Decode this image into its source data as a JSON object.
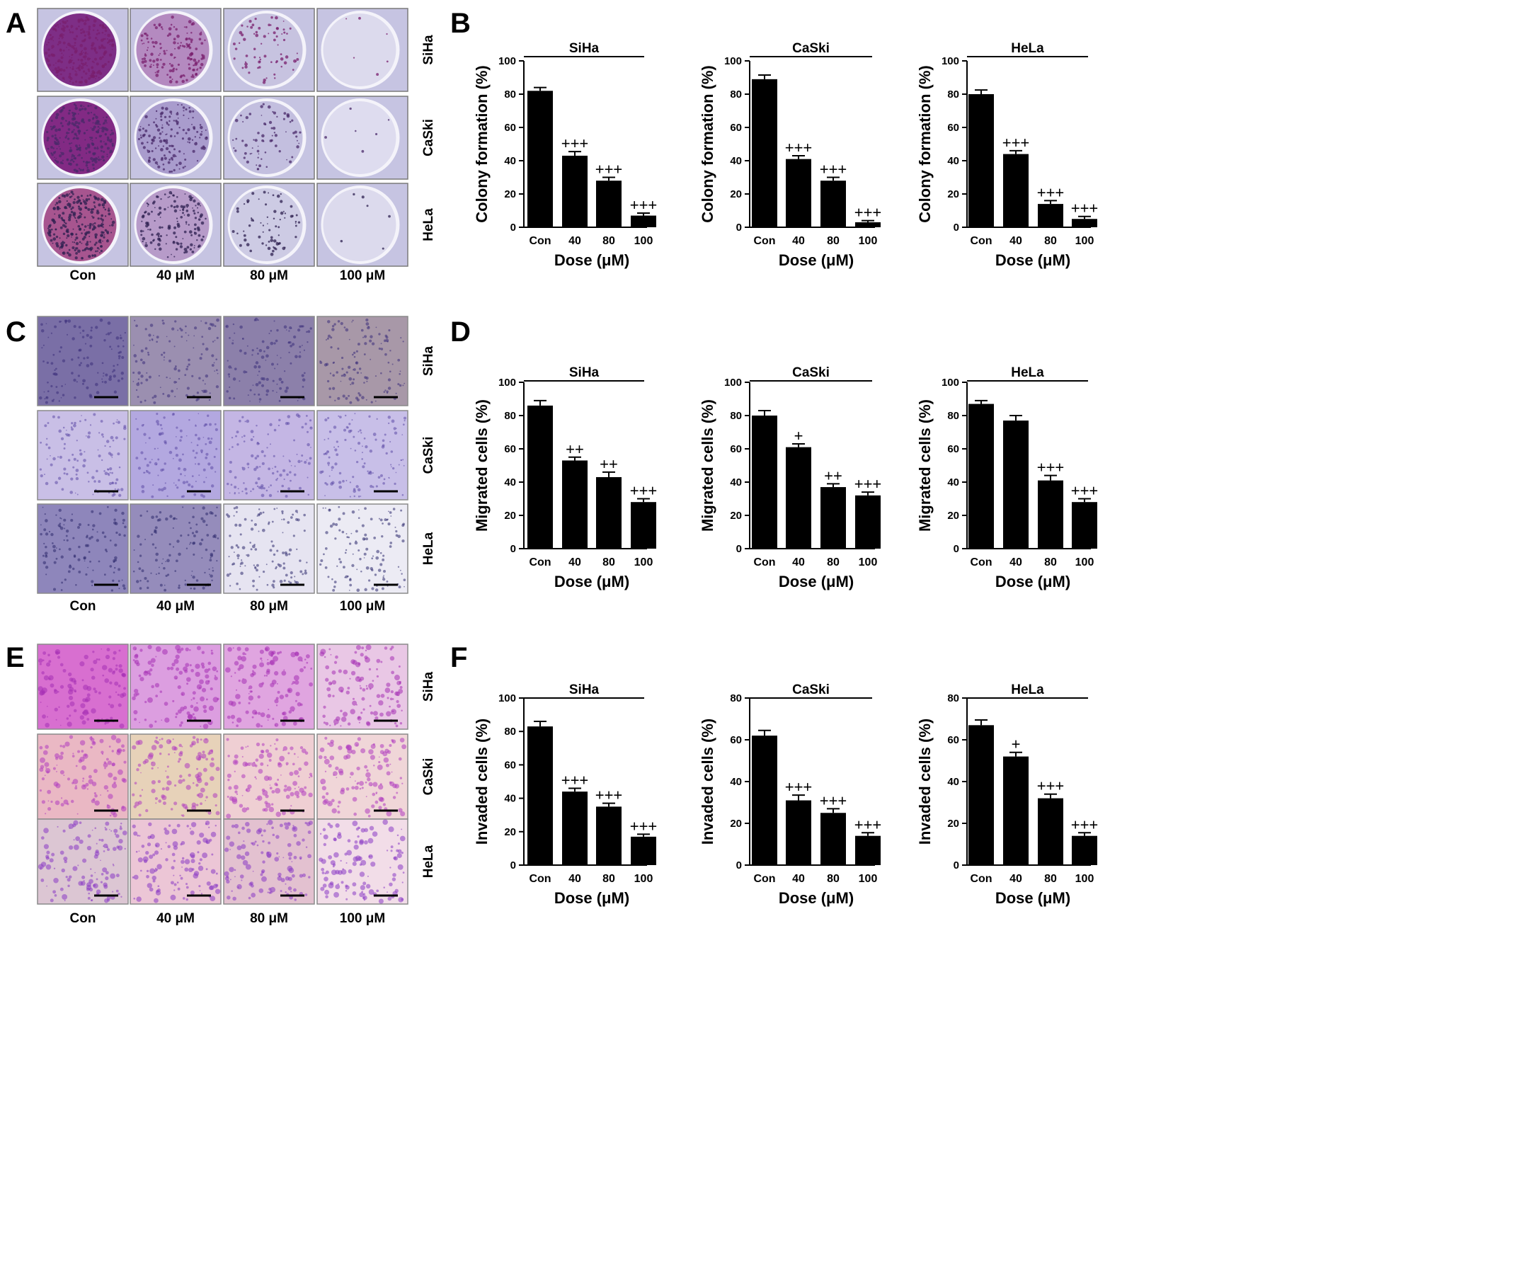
{
  "panel_letters": [
    "A",
    "B",
    "C",
    "D",
    "E",
    "F"
  ],
  "image_panels": [
    {
      "letter": "A",
      "conditions": [
        "Con",
        "40 μM",
        "80 μM",
        "100 μM"
      ],
      "cell_lines": [
        "SiHa",
        "CaSki",
        "HeLa"
      ],
      "style": "dish",
      "tints": [
        [
          "#7e2e86",
          "#b48ac0",
          "#c7c3e0",
          "#dcdaed"
        ],
        [
          "#822a84",
          "#a99ccd",
          "#c3bfdf",
          "#dedcef"
        ],
        [
          "#a7558f",
          "#b79bc9",
          "#cdcbe4",
          "#dcdaed"
        ]
      ],
      "dot_colors": [
        "#7a1f6e",
        "#4a2a6a",
        "#2d2050"
      ],
      "has_scale_bar": false
    },
    {
      "letter": "C",
      "conditions": [
        "Con",
        "40 μM",
        "80 μM",
        "100 μM"
      ],
      "cell_lines": [
        "SiHa",
        "CaSki",
        "HeLa"
      ],
      "style": "field",
      "tints": [
        [
          "#7a6fa6",
          "#9b8fb0",
          "#8c80aa",
          "#a898a8"
        ],
        [
          "#c9bfe6",
          "#b3a8e0",
          "#c4b6e4",
          "#c8bfe8"
        ],
        [
          "#8e86bb",
          "#958cbb",
          "#e6e4f1",
          "#ecebf4"
        ]
      ],
      "dot_colors": [
        "#3b2d7a",
        "#5c4aa6",
        "#2d2a6e"
      ],
      "has_scale_bar": true
    },
    {
      "letter": "E",
      "conditions": [
        "Con",
        "40 μM",
        "80 μM",
        "100 μM"
      ],
      "cell_lines": [
        "SiHa",
        "CaSki",
        "HeLa"
      ],
      "style": "field",
      "tints": [
        [
          "#d86fd0",
          "#dc9ee0",
          "#e0a5e0",
          "#e9c7e5"
        ],
        [
          "#eab8c4",
          "#e7d2b9",
          "#efcfd3",
          "#f0d6d8"
        ],
        [
          "#dcc6d3",
          "#ecc6d6",
          "#e3c1d0",
          "#f2dde8"
        ]
      ],
      "dot_colors": [
        "#a62fb5",
        "#b13cc0",
        "#8a3ac4"
      ],
      "has_scale_bar": true
    }
  ],
  "chart_data": [
    {
      "panel": "B",
      "type": "bar",
      "title": "SiHa",
      "ylabel": "Colony formation (%)",
      "xlabel": "Dose (μM)",
      "categories": [
        "Con",
        "40",
        "80",
        "100"
      ],
      "values": [
        82,
        43,
        28,
        7
      ],
      "errors": [
        2,
        2.5,
        2,
        1.5
      ],
      "annotations": [
        "",
        "+++",
        "+++",
        "+++"
      ],
      "ylim": [
        0,
        100
      ],
      "yticks": [
        0,
        20,
        40,
        60,
        80,
        100
      ]
    },
    {
      "panel": "B",
      "type": "bar",
      "title": "CaSki",
      "ylabel": "Colony formation (%)",
      "xlabel": "Dose (μM)",
      "categories": [
        "Con",
        "40",
        "80",
        "100"
      ],
      "values": [
        89,
        41,
        28,
        3
      ],
      "errors": [
        2.5,
        2,
        2,
        1
      ],
      "annotations": [
        "",
        "+++",
        "+++",
        "+++"
      ],
      "ylim": [
        0,
        100
      ],
      "yticks": [
        0,
        20,
        40,
        60,
        80,
        100
      ]
    },
    {
      "panel": "B",
      "type": "bar",
      "title": "HeLa",
      "ylabel": "Colony formation (%)",
      "xlabel": "Dose (μM)",
      "categories": [
        "Con",
        "40",
        "80",
        "100"
      ],
      "values": [
        80,
        44,
        14,
        5
      ],
      "errors": [
        2.5,
        2,
        2,
        1.5
      ],
      "annotations": [
        "",
        "+++",
        "+++",
        "+++"
      ],
      "ylim": [
        0,
        100
      ],
      "yticks": [
        0,
        20,
        40,
        60,
        80,
        100
      ]
    },
    {
      "panel": "D",
      "type": "bar",
      "title": "SiHa",
      "ylabel": "Migrated cells (%)",
      "xlabel": "Dose (μM)",
      "categories": [
        "Con",
        "40",
        "80",
        "100"
      ],
      "values": [
        86,
        53,
        43,
        28
      ],
      "errors": [
        3,
        2,
        3,
        2
      ],
      "annotations": [
        "",
        "++",
        "++",
        "+++"
      ],
      "ylim": [
        0,
        100
      ],
      "yticks": [
        0,
        20,
        40,
        60,
        80,
        100
      ]
    },
    {
      "panel": "D",
      "type": "bar",
      "title": "CaSki",
      "ylabel": "Migrated cells (%)",
      "xlabel": "Dose (μM)",
      "categories": [
        "Con",
        "40",
        "80",
        "100"
      ],
      "values": [
        80,
        61,
        37,
        32
      ],
      "errors": [
        3,
        2,
        2,
        2
      ],
      "annotations": [
        "",
        "+",
        "++",
        "+++"
      ],
      "ylim": [
        0,
        100
      ],
      "yticks": [
        0,
        20,
        40,
        60,
        80,
        100
      ]
    },
    {
      "panel": "D",
      "type": "bar",
      "title": "HeLa",
      "ylabel": "Migrated cells (%)",
      "xlabel": "Dose (μM)",
      "categories": [
        "Con",
        "40",
        "80",
        "100"
      ],
      "values": [
        87,
        77,
        41,
        28
      ],
      "errors": [
        2,
        3,
        3,
        2
      ],
      "annotations": [
        "",
        "",
        "+++",
        "+++"
      ],
      "ylim": [
        0,
        100
      ],
      "yticks": [
        0,
        20,
        40,
        60,
        80,
        100
      ]
    },
    {
      "panel": "F",
      "type": "bar",
      "title": "SiHa",
      "ylabel": "Invaded cells (%)",
      "xlabel": "Dose (μM)",
      "categories": [
        "Con",
        "40",
        "80",
        "100"
      ],
      "values": [
        83,
        44,
        35,
        17
      ],
      "errors": [
        3,
        2,
        2,
        1.5
      ],
      "annotations": [
        "",
        "+++",
        "+++",
        "+++"
      ],
      "ylim": [
        0,
        100
      ],
      "yticks": [
        0,
        20,
        40,
        60,
        80,
        100
      ]
    },
    {
      "panel": "F",
      "type": "bar",
      "title": "CaSki",
      "ylabel": "Invaded cells (%)",
      "xlabel": "Dose (μM)",
      "categories": [
        "Con",
        "40",
        "80",
        "100"
      ],
      "values": [
        62,
        31,
        25,
        14
      ],
      "errors": [
        2.5,
        2.5,
        2,
        1.5
      ],
      "annotations": [
        "",
        "+++",
        "+++",
        "+++"
      ],
      "ylim": [
        0,
        80
      ],
      "yticks": [
        0,
        20,
        40,
        60,
        80
      ]
    },
    {
      "panel": "F",
      "type": "bar",
      "title": "HeLa",
      "ylabel": "Invaded cells (%)",
      "xlabel": "Dose (μM)",
      "categories": [
        "Con",
        "40",
        "80",
        "100"
      ],
      "values": [
        67,
        52,
        32,
        14
      ],
      "errors": [
        2.5,
        2,
        2,
        1.5
      ],
      "annotations": [
        "",
        "+",
        "+++",
        "+++"
      ],
      "ylim": [
        0,
        80
      ],
      "yticks": [
        0,
        20,
        40,
        60,
        80
      ]
    }
  ]
}
